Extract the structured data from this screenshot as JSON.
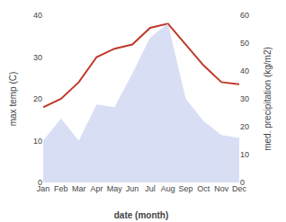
{
  "chart_data": {
    "type": "line",
    "xlabel": "date (month)",
    "ylabel": "max temp (C)",
    "y2label": "med. precipitation (kg/m2)",
    "categories": [
      "Jan",
      "Feb",
      "Mar",
      "Apr",
      "May",
      "Jun",
      "Jul",
      "Aug",
      "Sep",
      "Oct",
      "Nov",
      "Dec"
    ],
    "series": [
      {
        "type": "area",
        "axis": "y2",
        "color": "#c8d0f0",
        "values": [
          15,
          23,
          15,
          28,
          27,
          39,
          52,
          57,
          30,
          22,
          17,
          16
        ]
      },
      {
        "type": "line",
        "color": "#c0392b",
        "values": [
          18,
          20,
          24,
          30,
          32,
          33,
          37,
          38,
          33,
          28,
          24,
          23.5
        ]
      }
    ],
    "ylim": [
      0,
      40
    ],
    "yticks": [
      0,
      10,
      20,
      30,
      40
    ],
    "y2lim": [
      0,
      60
    ],
    "y2ticks": [
      0,
      10,
      20,
      30,
      40,
      50,
      60
    ],
    "grid": false
  }
}
